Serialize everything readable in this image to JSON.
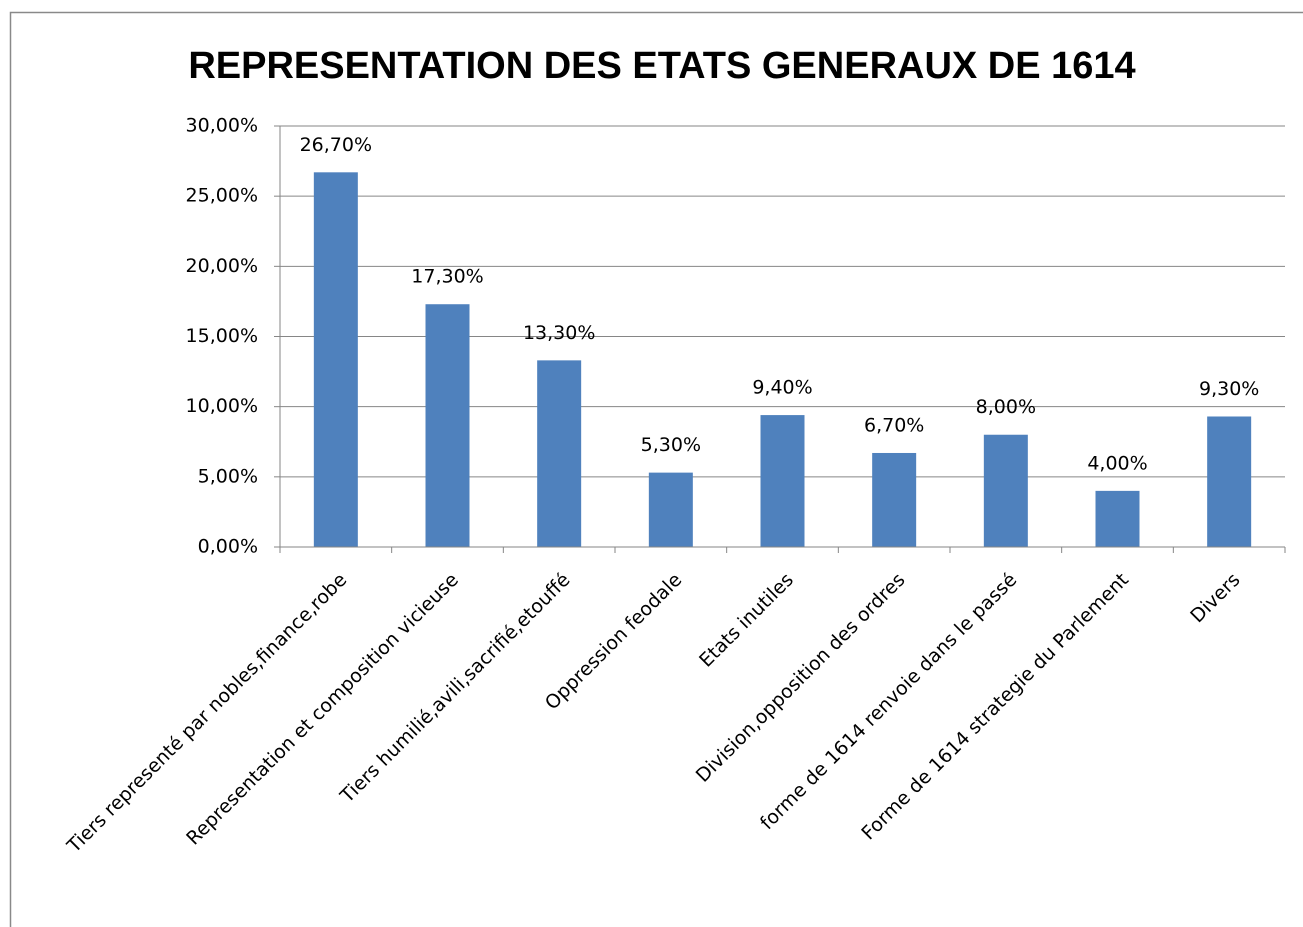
{
  "chart_data": {
    "type": "bar",
    "title": "REPRESENTATION DES ETATS GENERAUX DE 1614",
    "categories": [
      "Tiers representé  par nobles,finance,robe",
      "Representation et composition vicieuse",
      "Tiers humilié,avili,sacrifié,etouffé",
      "Oppression feodale",
      "Etats inutiles",
      "Division,opposition des ordres",
      "forme de 1614 renvoie dans le passé",
      "Forme de 1614 strategie du Parlement",
      "Divers"
    ],
    "values": [
      26.7,
      17.3,
      13.3,
      5.3,
      9.4,
      6.7,
      8.0,
      4.0,
      9.3
    ],
    "value_labels": [
      "26,70%",
      "17,30%",
      "13,30%",
      "5,30%",
      "9,40%",
      "6,70%",
      "8,00%",
      "4,00%",
      "9,30%"
    ],
    "color": "#4f81bd",
    "ylim": [
      0,
      30
    ],
    "yticks": [
      {
        "value": 0,
        "label": "0,00%"
      },
      {
        "value": 5,
        "label": "5,00%"
      },
      {
        "value": 10,
        "label": "10,00%"
      },
      {
        "value": 15,
        "label": "15,00%"
      },
      {
        "value": 20,
        "label": "20,00%"
      },
      {
        "value": 25,
        "label": "25,00%"
      },
      {
        "value": 30,
        "label": "30,00%"
      }
    ],
    "grid": true
  }
}
